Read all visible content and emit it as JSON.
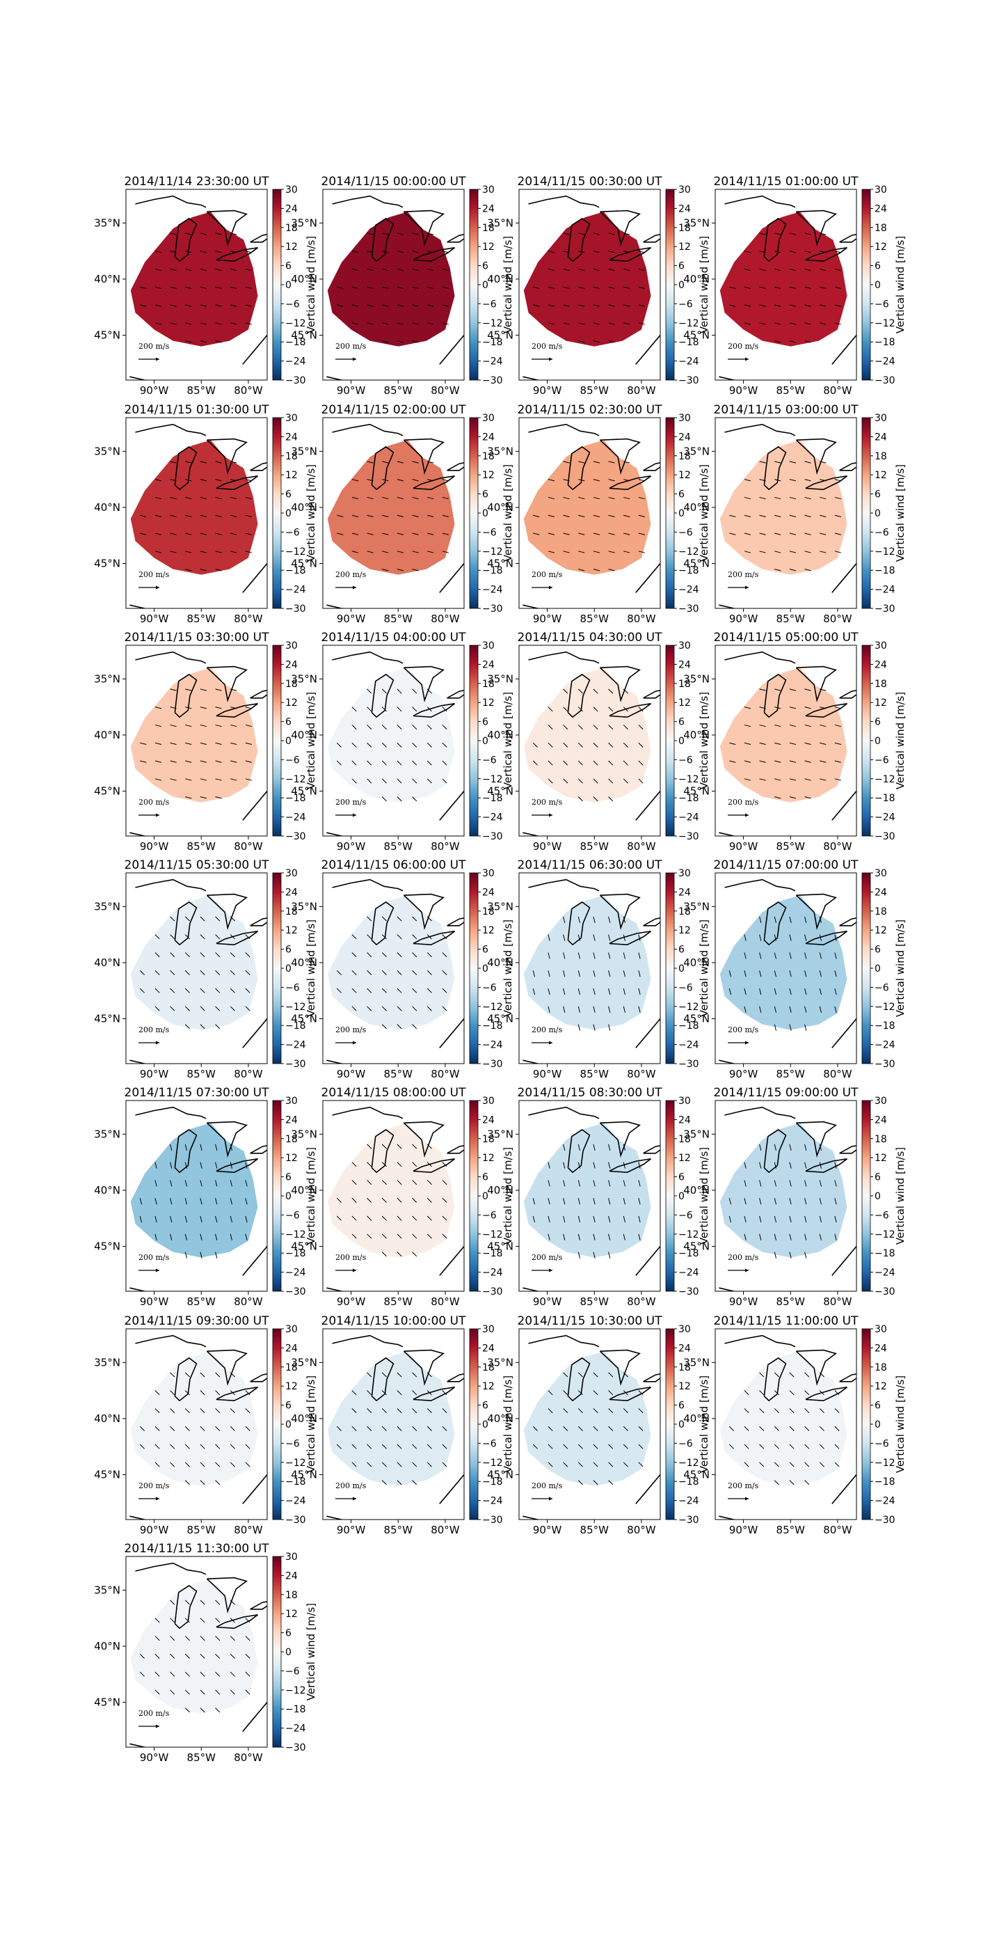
{
  "figure": {
    "panel_titles": [
      "2014/11/14 23:30:00 UT",
      "2014/11/15 00:00:00 UT",
      "2014/11/15 00:30:00 UT",
      "2014/11/15 01:00:00 UT",
      "2014/11/15 01:30:00 UT",
      "2014/11/15 02:00:00 UT",
      "2014/11/15 02:30:00 UT",
      "2014/11/15 03:00:00 UT",
      "2014/11/15 03:30:00 UT",
      "2014/11/15 04:00:00 UT",
      "2014/11/15 04:30:00 UT",
      "2014/11/15 05:00:00 UT",
      "2014/11/15 05:30:00 UT",
      "2014/11/15 06:00:00 UT",
      "2014/11/15 06:30:00 UT",
      "2014/11/15 07:00:00 UT",
      "2014/11/15 07:30:00 UT",
      "2014/11/15 08:00:00 UT",
      "2014/11/15 08:30:00 UT",
      "2014/11/15 09:00:00 UT",
      "2014/11/15 09:30:00 UT",
      "2014/11/15 10:00:00 UT",
      "2014/11/15 10:30:00 UT",
      "2014/11/15 11:00:00 UT",
      "2014/11/15 11:30:00 UT"
    ],
    "colorbar_label": "Vertical wind [m/s]",
    "colorbar_ticks": [
      "30",
      "24",
      "18",
      "12",
      "6",
      "0",
      "−6",
      "−12",
      "−18",
      "−24",
      "−30"
    ],
    "lon_ticks": [
      "90°W",
      "85°W",
      "80°W"
    ],
    "lat_ticks": [
      "45°N",
      "40°N",
      "35°N"
    ],
    "reference_arrow_label": "200 m/s"
  },
  "chart_data": {
    "type": "heatmap",
    "description_type": "map panels: vertical wind color fill with horizontal wind vectors",
    "colorbar_range": [
      -30,
      30
    ],
    "colormap": "RdBu_r",
    "lon_range": [
      -93,
      -78
    ],
    "lat_range": [
      31,
      48
    ],
    "lon_ticks": [
      -90,
      -85,
      -80
    ],
    "lat_ticks": [
      35,
      40,
      45
    ],
    "reference_arrow_speed": 200,
    "panels": [
      {
        "time": "2014/11/14 23:30:00 UT",
        "vertical_wind": 25
      },
      {
        "time": "2014/11/15 00:00:00 UT",
        "vertical_wind": 27
      },
      {
        "time": "2014/11/15 00:30:00 UT",
        "vertical_wind": 25
      },
      {
        "time": "2014/11/15 01:00:00 UT",
        "vertical_wind": 24
      },
      {
        "time": "2014/11/15 01:30:00 UT",
        "vertical_wind": 22
      },
      {
        "time": "2014/11/15 02:00:00 UT",
        "vertical_wind": 16
      },
      {
        "time": "2014/11/15 02:30:00 UT",
        "vertical_wind": 12
      },
      {
        "time": "2014/11/15 03:00:00 UT",
        "vertical_wind": 8
      },
      {
        "time": "2014/11/15 03:30:00 UT",
        "vertical_wind": 8
      },
      {
        "time": "2014/11/15 04:00:00 UT",
        "vertical_wind": -1
      },
      {
        "time": "2014/11/15 04:30:00 UT",
        "vertical_wind": 3
      },
      {
        "time": "2014/11/15 05:00:00 UT",
        "vertical_wind": 8
      },
      {
        "time": "2014/11/15 05:30:00 UT",
        "vertical_wind": -3
      },
      {
        "time": "2014/11/15 06:00:00 UT",
        "vertical_wind": -3
      },
      {
        "time": "2014/11/15 06:30:00 UT",
        "vertical_wind": -6
      },
      {
        "time": "2014/11/15 07:00:00 UT",
        "vertical_wind": -10
      },
      {
        "time": "2014/11/15 07:30:00 UT",
        "vertical_wind": -12
      },
      {
        "time": "2014/11/15 08:00:00 UT",
        "vertical_wind": 2
      },
      {
        "time": "2014/11/15 08:30:00 UT",
        "vertical_wind": -7
      },
      {
        "time": "2014/11/15 09:00:00 UT",
        "vertical_wind": -8
      },
      {
        "time": "2014/11/15 09:30:00 UT",
        "vertical_wind": -1
      },
      {
        "time": "2014/11/15 10:00:00 UT",
        "vertical_wind": -4
      },
      {
        "time": "2014/11/15 10:30:00 UT",
        "vertical_wind": -5
      },
      {
        "time": "2014/11/15 11:00:00 UT",
        "vertical_wind": -1
      },
      {
        "time": "2014/11/15 11:30:00 UT",
        "vertical_wind": -1
      }
    ]
  }
}
